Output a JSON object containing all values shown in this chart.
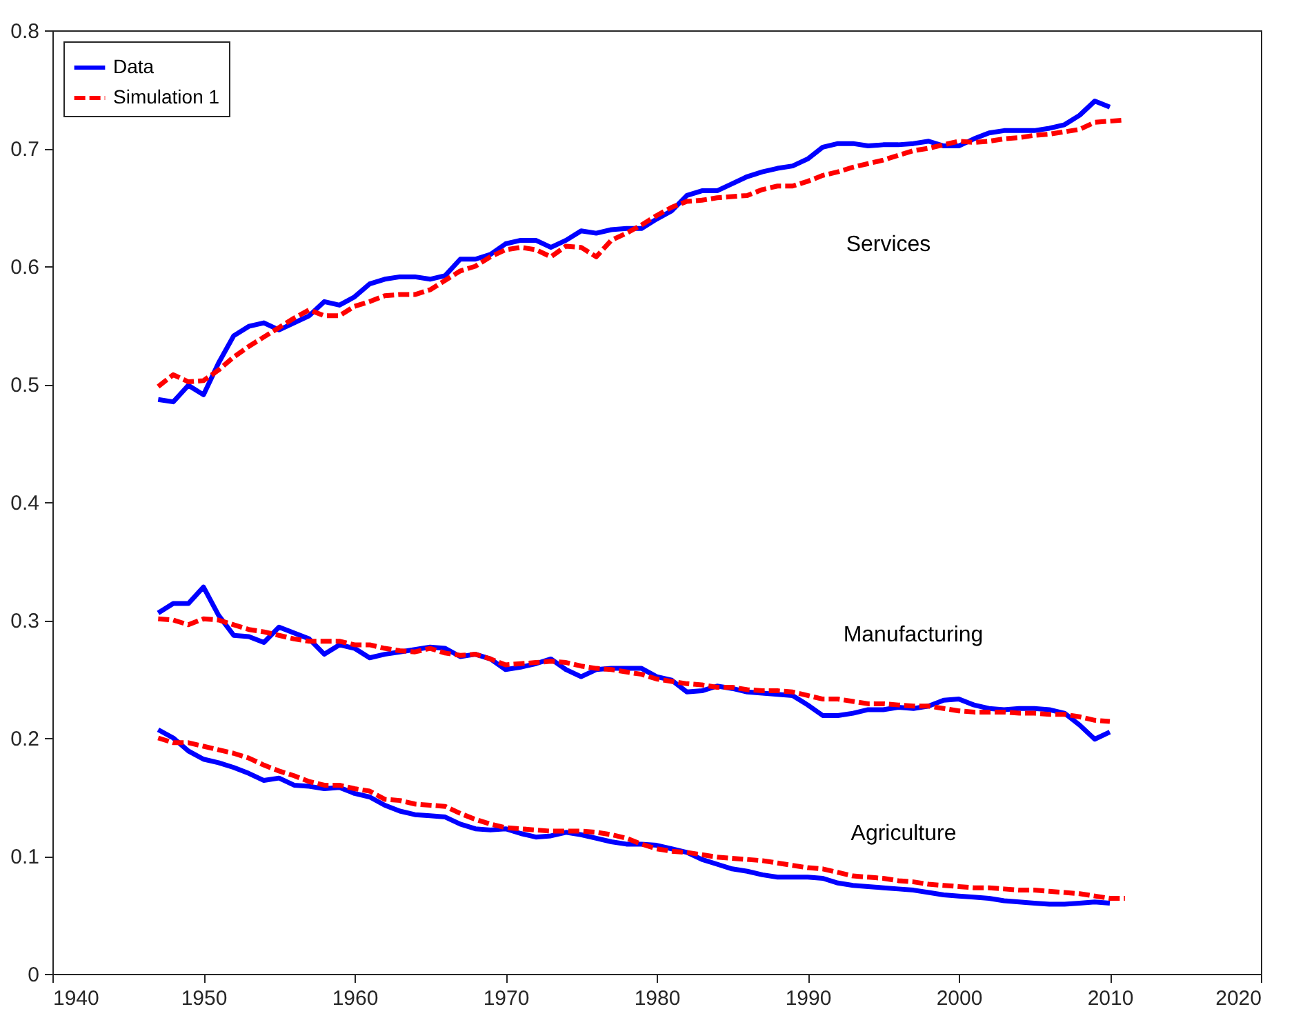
{
  "chart_data": {
    "type": "line",
    "xlim": [
      1940,
      2020
    ],
    "xticks": [
      1940,
      1950,
      1960,
      1970,
      1980,
      1990,
      2000,
      2010,
      2020
    ],
    "ylim": [
      0,
      0.8
    ],
    "yticks": [
      0,
      0.1,
      0.2,
      0.3,
      0.4,
      0.5,
      0.6,
      0.7,
      0.8
    ],
    "legend": "top left",
    "grid": false,
    "x": [
      1947,
      1948,
      1949,
      1950,
      1951,
      1952,
      1953,
      1954,
      1955,
      1956,
      1957,
      1958,
      1959,
      1960,
      1961,
      1962,
      1963,
      1964,
      1965,
      1966,
      1967,
      1968,
      1969,
      1970,
      1971,
      1972,
      1973,
      1974,
      1975,
      1976,
      1977,
      1978,
      1979,
      1980,
      1981,
      1982,
      1983,
      1984,
      1985,
      1986,
      1987,
      1988,
      1989,
      1990,
      1991,
      1992,
      1993,
      1994,
      1995,
      1996,
      1997,
      1998,
      1999,
      2000,
      2001,
      2002,
      2003,
      2004,
      2005,
      2006,
      2007,
      2008,
      2009,
      2010
    ],
    "series": [
      {
        "name": "Data",
        "color": "#0000ff",
        "line_style": "solid",
        "values": [
          0.487,
          0.485,
          0.499,
          0.491,
          0.518,
          0.541,
          0.549,
          0.552,
          0.546,
          0.552,
          0.558,
          0.57,
          0.567,
          0.574,
          0.585,
          0.589,
          0.591,
          0.591,
          0.589,
          0.592,
          0.606,
          0.606,
          0.61,
          0.619,
          0.622,
          0.622,
          0.616,
          0.622,
          0.63,
          0.628,
          0.631,
          0.632,
          0.632,
          0.64,
          0.647,
          0.66,
          0.664,
          0.664,
          0.67,
          0.676,
          0.68,
          0.683,
          0.685,
          0.691,
          0.701,
          0.704,
          0.704,
          0.702,
          0.703,
          0.703,
          0.704,
          0.706,
          0.702,
          0.702,
          0.708,
          0.713,
          0.715,
          0.715,
          0.715,
          0.717,
          0.72,
          0.728,
          0.74,
          0.735
        ]
      },
      {
        "name": "Simulation 1",
        "color": "#ff0000",
        "line_style": "dashed",
        "x": [
          1947,
          1948,
          1949,
          1950,
          1951,
          1952,
          1953,
          1954,
          1955,
          1956,
          1957,
          1958,
          1959,
          1960,
          1961,
          1962,
          1963,
          1964,
          1965,
          1966,
          1967,
          1968,
          1969,
          1970,
          1971,
          1972,
          1973,
          1974,
          1975,
          1976,
          1977,
          1978,
          1979,
          1980,
          1981,
          1982,
          1983,
          1984,
          1985,
          1986,
          1987,
          1988,
          1989,
          1990,
          1991,
          1992,
          1993,
          1994,
          1995,
          1996,
          1997,
          1998,
          1999,
          2000,
          2001,
          2002,
          2003,
          2004,
          2005,
          2006,
          2007,
          2008,
          2009,
          2010,
          2011
        ],
        "values": [
          0.498,
          0.508,
          0.502,
          0.503,
          0.512,
          0.523,
          0.532,
          0.54,
          0.548,
          0.556,
          0.563,
          0.558,
          0.558,
          0.566,
          0.57,
          0.575,
          0.576,
          0.576,
          0.58,
          0.588,
          0.596,
          0.6,
          0.608,
          0.614,
          0.616,
          0.614,
          0.608,
          0.617,
          0.616,
          0.608,
          0.622,
          0.628,
          0.635,
          0.643,
          0.65,
          0.655,
          0.656,
          0.658,
          0.659,
          0.66,
          0.665,
          0.668,
          0.668,
          0.672,
          0.677,
          0.68,
          0.684,
          0.687,
          0.69,
          0.694,
          0.698,
          0.7,
          0.703,
          0.706,
          0.705,
          0.706,
          0.708,
          0.709,
          0.711,
          0.712,
          0.714,
          0.716,
          0.722,
          0.723,
          0.724
        ]
      },
      {
        "color": "#0000ff",
        "line_style": "solid",
        "values": [
          0.306,
          0.314,
          0.314,
          0.328,
          0.304,
          0.287,
          0.286,
          0.281,
          0.294,
          0.289,
          0.284,
          0.271,
          0.279,
          0.276,
          0.268,
          0.271,
          0.273,
          0.275,
          0.277,
          0.276,
          0.269,
          0.271,
          0.267,
          0.258,
          0.26,
          0.263,
          0.267,
          0.258,
          0.252,
          0.258,
          0.259,
          0.259,
          0.259,
          0.252,
          0.249,
          0.239,
          0.24,
          0.244,
          0.242,
          0.239,
          0.238,
          0.237,
          0.236,
          0.228,
          0.219,
          0.219,
          0.221,
          0.224,
          0.224,
          0.226,
          0.225,
          0.227,
          0.232,
          0.233,
          0.228,
          0.225,
          0.224,
          0.225,
          0.225,
          0.224,
          0.221,
          0.211,
          0.199,
          0.205
        ]
      },
      {
        "color": "#ff0000",
        "line_style": "dashed",
        "values": [
          0.301,
          0.3,
          0.296,
          0.301,
          0.3,
          0.296,
          0.292,
          0.29,
          0.287,
          0.284,
          0.282,
          0.282,
          0.282,
          0.279,
          0.279,
          0.276,
          0.274,
          0.273,
          0.276,
          0.272,
          0.27,
          0.271,
          0.267,
          0.262,
          0.263,
          0.264,
          0.265,
          0.264,
          0.261,
          0.259,
          0.258,
          0.256,
          0.254,
          0.25,
          0.248,
          0.246,
          0.245,
          0.243,
          0.243,
          0.241,
          0.24,
          0.24,
          0.239,
          0.236,
          0.233,
          0.233,
          0.231,
          0.229,
          0.229,
          0.228,
          0.227,
          0.227,
          0.225,
          0.223,
          0.222,
          0.222,
          0.222,
          0.221,
          0.221,
          0.22,
          0.22,
          0.218,
          0.215,
          0.214
        ]
      },
      {
        "color": "#0000ff",
        "line_style": "solid",
        "values": [
          0.207,
          0.2,
          0.189,
          0.182,
          0.179,
          0.175,
          0.17,
          0.164,
          0.166,
          0.16,
          0.159,
          0.157,
          0.158,
          0.153,
          0.15,
          0.143,
          0.138,
          0.135,
          0.134,
          0.133,
          0.127,
          0.123,
          0.122,
          0.123,
          0.119,
          0.116,
          0.117,
          0.12,
          0.118,
          0.115,
          0.112,
          0.11,
          0.11,
          0.109,
          0.106,
          0.103,
          0.097,
          0.093,
          0.089,
          0.087,
          0.084,
          0.082,
          0.082,
          0.082,
          0.081,
          0.077,
          0.075,
          0.074,
          0.073,
          0.072,
          0.071,
          0.069,
          0.067,
          0.066,
          0.065,
          0.064,
          0.062,
          0.061,
          0.06,
          0.059,
          0.059,
          0.06,
          0.061,
          0.06
        ]
      },
      {
        "color": "#ff0000",
        "line_style": "dashed",
        "x": [
          1947,
          1948,
          1949,
          1950,
          1951,
          1952,
          1953,
          1954,
          1955,
          1956,
          1957,
          1958,
          1959,
          1960,
          1961,
          1962,
          1963,
          1964,
          1965,
          1966,
          1967,
          1968,
          1969,
          1970,
          1971,
          1972,
          1973,
          1974,
          1975,
          1976,
          1977,
          1978,
          1979,
          1980,
          1981,
          1982,
          1983,
          1984,
          1985,
          1986,
          1987,
          1988,
          1989,
          1990,
          1991,
          1992,
          1993,
          1994,
          1995,
          1996,
          1997,
          1998,
          1999,
          2000,
          2001,
          2002,
          2003,
          2004,
          2005,
          2006,
          2007,
          2008,
          2009,
          2010,
          2011
        ],
        "values": [
          0.2,
          0.196,
          0.196,
          0.193,
          0.19,
          0.187,
          0.183,
          0.177,
          0.172,
          0.168,
          0.163,
          0.16,
          0.16,
          0.157,
          0.155,
          0.148,
          0.147,
          0.144,
          0.143,
          0.142,
          0.136,
          0.131,
          0.127,
          0.124,
          0.123,
          0.122,
          0.121,
          0.121,
          0.121,
          0.12,
          0.118,
          0.115,
          0.11,
          0.106,
          0.104,
          0.103,
          0.101,
          0.099,
          0.098,
          0.097,
          0.096,
          0.094,
          0.092,
          0.09,
          0.089,
          0.086,
          0.083,
          0.082,
          0.081,
          0.079,
          0.078,
          0.076,
          0.075,
          0.074,
          0.073,
          0.073,
          0.072,
          0.071,
          0.071,
          0.07,
          0.069,
          0.068,
          0.066,
          0.064,
          0.064
        ]
      }
    ],
    "annotations": [
      "Services",
      "Manufacturing",
      "Agriculture"
    ]
  }
}
